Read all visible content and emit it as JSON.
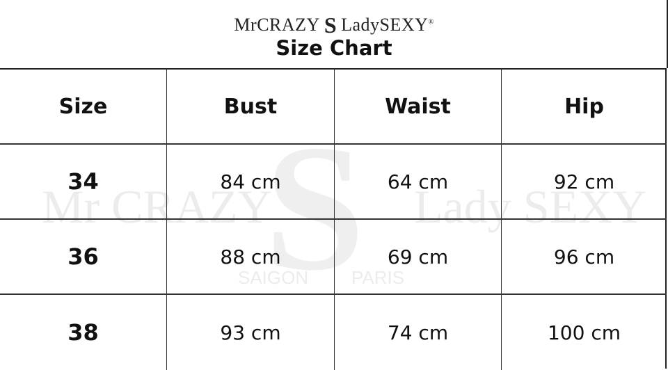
{
  "brand": {
    "left": "MrCRAZY",
    "mark": "S",
    "right": "LadySEXY",
    "registered": "®"
  },
  "title": "Size Chart",
  "table": {
    "headers": [
      "Size",
      "Bust",
      "Waist",
      "Hip"
    ],
    "rows": [
      [
        "34",
        "84 cm",
        "64 cm",
        "92 cm"
      ],
      [
        "36",
        "88 cm",
        "69 cm",
        "96 cm"
      ],
      [
        "38",
        "93 cm",
        "74 cm",
        "100 cm"
      ]
    ]
  },
  "watermark": {
    "left": "Mr CRAZY",
    "mark": "S",
    "right": "Lady SEXY",
    "city_left": "SAIGON",
    "city_right": "PARIS"
  }
}
